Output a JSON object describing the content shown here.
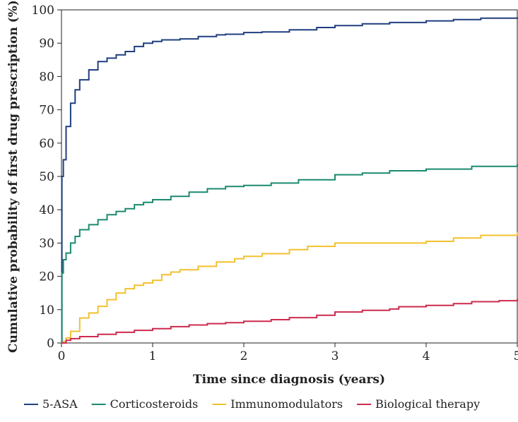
{
  "chart_data": {
    "type": "line",
    "title": "",
    "xlabel": "Time since diagnosis (years)",
    "ylabel": "Cumulative probability of first drug prescription (%)",
    "xlim": [
      0,
      5
    ],
    "ylim": [
      0,
      100
    ],
    "x_ticks": [
      "0",
      "1",
      "2",
      "3",
      "4",
      "5"
    ],
    "y_ticks": [
      "0",
      "10",
      "20",
      "30",
      "40",
      "50",
      "60",
      "70",
      "80",
      "90",
      "100"
    ],
    "grid": false,
    "legend_position": "bottom",
    "series": [
      {
        "name": "5-ASA",
        "color": "#1f3f7f",
        "points": [
          [
            0,
            0
          ],
          [
            0.005,
            50
          ],
          [
            0.02,
            55
          ],
          [
            0.05,
            65
          ],
          [
            0.1,
            72
          ],
          [
            0.15,
            76
          ],
          [
            0.2,
            79
          ],
          [
            0.3,
            82
          ],
          [
            0.4,
            84.5
          ],
          [
            0.5,
            85.5
          ],
          [
            0.6,
            86.5
          ],
          [
            0.7,
            87.5
          ],
          [
            0.8,
            89
          ],
          [
            0.9,
            90
          ],
          [
            1.0,
            90.5
          ],
          [
            1.1,
            91
          ],
          [
            1.3,
            91.3
          ],
          [
            1.5,
            92
          ],
          [
            1.7,
            92.5
          ],
          [
            1.8,
            92.7
          ],
          [
            2.0,
            93.2
          ],
          [
            2.2,
            93.4
          ],
          [
            2.5,
            94
          ],
          [
            2.8,
            94.7
          ],
          [
            3.0,
            95.3
          ],
          [
            3.3,
            95.8
          ],
          [
            3.6,
            96.2
          ],
          [
            4.0,
            96.7
          ],
          [
            4.3,
            97.1
          ],
          [
            4.6,
            97.5
          ],
          [
            5.0,
            97.8
          ]
        ]
      },
      {
        "name": "Corticosteroids",
        "color": "#1a8a70",
        "points": [
          [
            0,
            0
          ],
          [
            0.005,
            21
          ],
          [
            0.02,
            25
          ],
          [
            0.05,
            27
          ],
          [
            0.1,
            30
          ],
          [
            0.15,
            32
          ],
          [
            0.2,
            34
          ],
          [
            0.3,
            35.5
          ],
          [
            0.4,
            37
          ],
          [
            0.5,
            38.5
          ],
          [
            0.6,
            39.5
          ],
          [
            0.7,
            40.3
          ],
          [
            0.8,
            41.5
          ],
          [
            0.9,
            42.2
          ],
          [
            1.0,
            43
          ],
          [
            1.2,
            44
          ],
          [
            1.4,
            45.3
          ],
          [
            1.6,
            46.3
          ],
          [
            1.8,
            47
          ],
          [
            2.0,
            47.3
          ],
          [
            2.3,
            48
          ],
          [
            2.6,
            49
          ],
          [
            3.0,
            50.5
          ],
          [
            3.3,
            51
          ],
          [
            3.6,
            51.7
          ],
          [
            4.0,
            52.2
          ],
          [
            4.5,
            53
          ],
          [
            5.0,
            53.7
          ]
        ]
      },
      {
        "name": "Immunomodulators",
        "color": "#f2c12e",
        "points": [
          [
            0,
            0
          ],
          [
            0.02,
            0.5
          ],
          [
            0.05,
            1.5
          ],
          [
            0.1,
            3.5
          ],
          [
            0.2,
            7.5
          ],
          [
            0.3,
            9
          ],
          [
            0.4,
            11
          ],
          [
            0.5,
            13
          ],
          [
            0.6,
            15
          ],
          [
            0.7,
            16.3
          ],
          [
            0.8,
            17.3
          ],
          [
            0.9,
            18
          ],
          [
            1.0,
            18.8
          ],
          [
            1.1,
            20.5
          ],
          [
            1.2,
            21.3
          ],
          [
            1.3,
            22
          ],
          [
            1.5,
            23
          ],
          [
            1.7,
            24.3
          ],
          [
            1.9,
            25.3
          ],
          [
            2.0,
            26
          ],
          [
            2.2,
            26.8
          ],
          [
            2.5,
            28
          ],
          [
            2.7,
            29
          ],
          [
            3.0,
            30
          ],
          [
            3.5,
            30
          ],
          [
            3.9,
            30
          ],
          [
            4.0,
            30.5
          ],
          [
            4.3,
            31.5
          ],
          [
            4.6,
            32.3
          ],
          [
            5.0,
            33.3
          ]
        ]
      },
      {
        "name": "Biological therapy",
        "color": "#cc2b4f",
        "points": [
          [
            0,
            0
          ],
          [
            0.05,
            0.8
          ],
          [
            0.1,
            1.3
          ],
          [
            0.2,
            1.9
          ],
          [
            0.4,
            2.6
          ],
          [
            0.6,
            3.2
          ],
          [
            0.8,
            3.8
          ],
          [
            1.0,
            4.3
          ],
          [
            1.2,
            4.9
          ],
          [
            1.4,
            5.4
          ],
          [
            1.6,
            5.8
          ],
          [
            1.8,
            6.1
          ],
          [
            2.0,
            6.5
          ],
          [
            2.3,
            7
          ],
          [
            2.5,
            7.6
          ],
          [
            2.8,
            8.3
          ],
          [
            3.0,
            9.3
          ],
          [
            3.3,
            9.8
          ],
          [
            3.6,
            10.2
          ],
          [
            3.7,
            10.9
          ],
          [
            4.0,
            11.3
          ],
          [
            4.3,
            11.8
          ],
          [
            4.5,
            12.4
          ],
          [
            4.8,
            12.7
          ],
          [
            5.0,
            13.2
          ]
        ]
      }
    ]
  }
}
